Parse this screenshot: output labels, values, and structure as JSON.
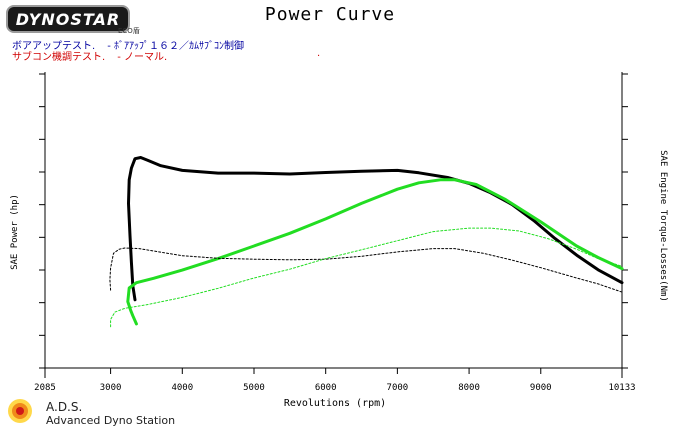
{
  "header": {
    "logo_text": "DYNOSTAR",
    "logo_sub": "ECO盾",
    "title": "Power Curve"
  },
  "legend": [
    {
      "label": "ボアアップテスト.",
      "desc": "- ﾎﾞｱｱｯﾌﾟ１６２／ｶﾑｻﾌﾞｺﾝ制御",
      "color": "#0000a0"
    },
    {
      "label": "サブコン機調テスト.",
      "desc": "- ノーマル.",
      "color": "#d00000"
    }
  ],
  "footer": {
    "brand": "A.D.S.",
    "station": "Advanced Dyno Station"
  },
  "colors": {
    "series_black": "#000000",
    "series_green": "#22dd22",
    "axis": "#000000"
  },
  "chart_data": {
    "type": "line",
    "title": "Power Curve",
    "xlabel": "Revolutions (rpm)",
    "ylabel": "SAE Power (hp)",
    "y2label": "SAE Engine Torque-Losses(Nm)",
    "xlim": [
      2085,
      10133
    ],
    "x_tick_labels": [
      2085,
      3000,
      4000,
      5000,
      6000,
      7000,
      8000,
      9000,
      10133
    ],
    "left_tick_count": 10,
    "right_tick_count": 10,
    "grid": false,
    "series": [
      {
        "kind": "power",
        "color": "#000000",
        "style": "solid",
        "points": [
          [
            3340,
            0.232
          ],
          [
            3310,
            0.28
          ],
          [
            3290,
            0.36
          ],
          [
            3270,
            0.45
          ],
          [
            3250,
            0.56
          ],
          [
            3260,
            0.64
          ],
          [
            3290,
            0.68
          ],
          [
            3340,
            0.712
          ],
          [
            3420,
            0.716
          ],
          [
            3520,
            0.706
          ],
          [
            3700,
            0.688
          ],
          [
            4000,
            0.672
          ],
          [
            4500,
            0.663
          ],
          [
            5000,
            0.663
          ],
          [
            5500,
            0.66
          ],
          [
            6000,
            0.665
          ],
          [
            6500,
            0.669
          ],
          [
            7000,
            0.672
          ],
          [
            7300,
            0.664
          ],
          [
            7700,
            0.648
          ],
          [
            8000,
            0.628
          ],
          [
            8300,
            0.596
          ],
          [
            8600,
            0.556
          ],
          [
            8900,
            0.502
          ],
          [
            9200,
            0.44
          ],
          [
            9500,
            0.384
          ],
          [
            9800,
            0.334
          ],
          [
            10133,
            0.29
          ]
        ]
      },
      {
        "kind": "power",
        "color": "#22dd22",
        "style": "solid",
        "points": [
          [
            3360,
            0.15
          ],
          [
            3310,
            0.178
          ],
          [
            3280,
            0.196
          ],
          [
            3240,
            0.226
          ],
          [
            3260,
            0.272
          ],
          [
            3360,
            0.29
          ],
          [
            3600,
            0.305
          ],
          [
            4000,
            0.333
          ],
          [
            4500,
            0.372
          ],
          [
            5000,
            0.415
          ],
          [
            5500,
            0.458
          ],
          [
            6000,
            0.507
          ],
          [
            6500,
            0.56
          ],
          [
            7000,
            0.608
          ],
          [
            7300,
            0.63
          ],
          [
            7600,
            0.64
          ],
          [
            7800,
            0.64
          ],
          [
            8100,
            0.624
          ],
          [
            8500,
            0.574
          ],
          [
            9000,
            0.497
          ],
          [
            9500,
            0.415
          ],
          [
            9800,
            0.376
          ],
          [
            10133,
            0.338
          ]
        ]
      },
      {
        "kind": "torque",
        "color": "#000000",
        "style": "dashed",
        "points": [
          [
            3000,
            0.265
          ],
          [
            2990,
            0.3
          ],
          [
            3000,
            0.34
          ],
          [
            3040,
            0.39
          ],
          [
            3120,
            0.404
          ],
          [
            3200,
            0.408
          ],
          [
            3400,
            0.406
          ],
          [
            3700,
            0.394
          ],
          [
            4000,
            0.382
          ],
          [
            4500,
            0.373
          ],
          [
            5000,
            0.37
          ],
          [
            5500,
            0.368
          ],
          [
            6000,
            0.37
          ],
          [
            6500,
            0.38
          ],
          [
            7000,
            0.395
          ],
          [
            7500,
            0.406
          ],
          [
            7800,
            0.406
          ],
          [
            8200,
            0.39
          ],
          [
            8600,
            0.367
          ],
          [
            9000,
            0.341
          ],
          [
            9500,
            0.306
          ],
          [
            9800,
            0.286
          ],
          [
            10133,
            0.258
          ]
        ]
      },
      {
        "kind": "torque",
        "color": "#22dd22",
        "style": "dashed",
        "points": [
          [
            3000,
            0.14
          ],
          [
            3000,
            0.165
          ],
          [
            3060,
            0.19
          ],
          [
            3200,
            0.203
          ],
          [
            3500,
            0.215
          ],
          [
            4000,
            0.24
          ],
          [
            4500,
            0.271
          ],
          [
            5000,
            0.306
          ],
          [
            5500,
            0.336
          ],
          [
            6000,
            0.372
          ],
          [
            6500,
            0.402
          ],
          [
            7000,
            0.433
          ],
          [
            7500,
            0.464
          ],
          [
            8000,
            0.476
          ],
          [
            8300,
            0.476
          ],
          [
            8700,
            0.466
          ],
          [
            9100,
            0.44
          ],
          [
            9500,
            0.404
          ],
          [
            9800,
            0.372
          ],
          [
            10133,
            0.346
          ]
        ]
      }
    ]
  }
}
